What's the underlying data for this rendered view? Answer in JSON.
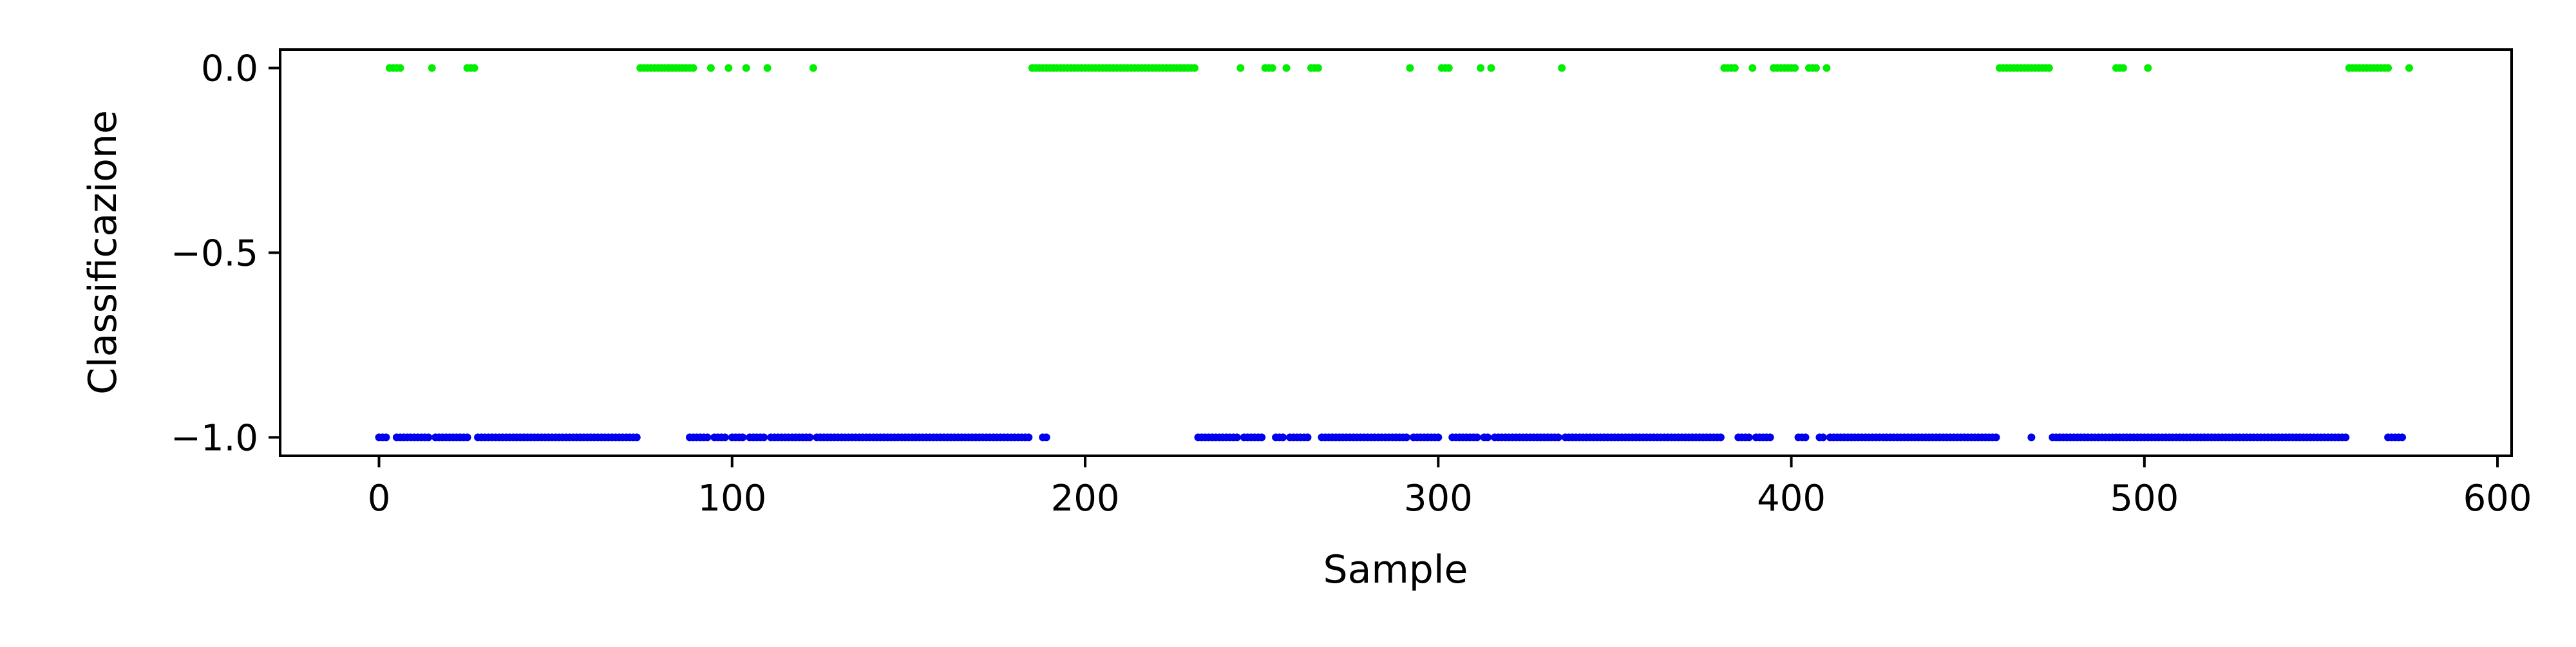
{
  "chart_data": {
    "type": "scatter",
    "xlabel": "Sample",
    "ylabel": "Classificazione",
    "xlim": [
      -28,
      604
    ],
    "ylim": [
      -1.05,
      0.05
    ],
    "x_ticks": [
      0,
      100,
      200,
      300,
      400,
      500,
      600
    ],
    "y_ticks": [
      0.0,
      -0.5,
      -1.0
    ],
    "y_tick_labels": [
      "0.0",
      "−0.5",
      "−1.0"
    ],
    "grid": false,
    "series": [
      {
        "color": "#00ee00",
        "y": 0.0,
        "x": [
          3,
          4,
          5,
          6,
          15,
          25,
          26,
          27,
          74,
          75,
          76,
          77,
          78,
          79,
          80,
          81,
          82,
          83,
          84,
          85,
          86,
          87,
          88,
          89,
          94,
          99,
          104,
          110,
          123,
          185,
          186,
          187,
          188,
          189,
          190,
          191,
          192,
          193,
          194,
          195,
          196,
          197,
          198,
          199,
          200,
          201,
          202,
          203,
          204,
          205,
          206,
          207,
          208,
          209,
          210,
          211,
          212,
          213,
          214,
          215,
          216,
          217,
          218,
          219,
          220,
          221,
          222,
          223,
          224,
          225,
          226,
          227,
          228,
          229,
          230,
          231,
          244,
          251,
          252,
          253,
          257,
          264,
          265,
          266,
          292,
          301,
          302,
          303,
          312,
          315,
          335,
          381,
          382,
          383,
          384,
          389,
          395,
          396,
          397,
          398,
          399,
          400,
          401,
          405,
          406,
          407,
          410,
          459,
          460,
          461,
          462,
          463,
          464,
          465,
          466,
          467,
          468,
          469,
          470,
          471,
          472,
          473,
          492,
          493,
          494,
          501,
          558,
          559,
          560,
          561,
          562,
          563,
          564,
          565,
          566,
          567,
          568,
          569,
          575
        ]
      },
      {
        "color": "#0000ee",
        "y": -1.0,
        "x_ranges": [
          [
            0,
            2
          ],
          [
            5,
            73
          ],
          [
            88,
            184
          ],
          [
            188,
            189
          ],
          [
            232,
            468
          ],
          [
            474,
            557
          ],
          [
            569,
            573
          ]
        ],
        "x_gaps": [
          3,
          4,
          15,
          26,
          27,
          94,
          99,
          104,
          110,
          123,
          185,
          186,
          187,
          244,
          251,
          252,
          253,
          257,
          264,
          265,
          266,
          292,
          301,
          302,
          303,
          312,
          315,
          335,
          381,
          382,
          383,
          384,
          389,
          395,
          396,
          397,
          398,
          399,
          400,
          401,
          405,
          406,
          407,
          410,
          459,
          460,
          461,
          462,
          463,
          464,
          465,
          466,
          467,
          469,
          470,
          471,
          472,
          473
        ]
      }
    ]
  }
}
